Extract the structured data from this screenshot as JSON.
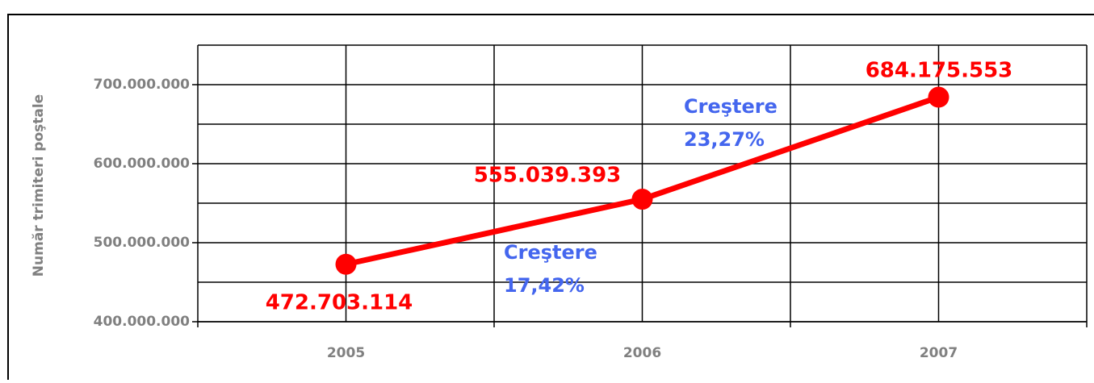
{
  "chart_data": {
    "type": "line",
    "y_axis_label": "Număr trimiteri poştale",
    "categories": [
      "2005",
      "2006",
      "2007"
    ],
    "series": [
      {
        "name": "Număr trimiteri poştale",
        "color": "#ff0000",
        "values": [
          472703114,
          555039393,
          684175553
        ],
        "value_labels": [
          "472.703.114",
          "555.039.393",
          "684.175.553"
        ]
      }
    ],
    "ylim": [
      400000000,
      750000000
    ],
    "yticks": [
      {
        "value": 400000000,
        "label": "400.000.000"
      },
      {
        "value": 500000000,
        "label": "500.000.000"
      },
      {
        "value": 600000000,
        "label": "600.000.000"
      },
      {
        "value": 700000000,
        "label": "700.000.000"
      }
    ],
    "minor_yticks": [
      450000000,
      550000000,
      650000000,
      750000000
    ],
    "grid": true,
    "annotations": [
      {
        "lines": [
          "Creştere",
          "17,42%"
        ],
        "color": "#4466ee"
      },
      {
        "lines": [
          "Creştere",
          "23,27%"
        ],
        "color": "#4466ee"
      }
    ]
  }
}
